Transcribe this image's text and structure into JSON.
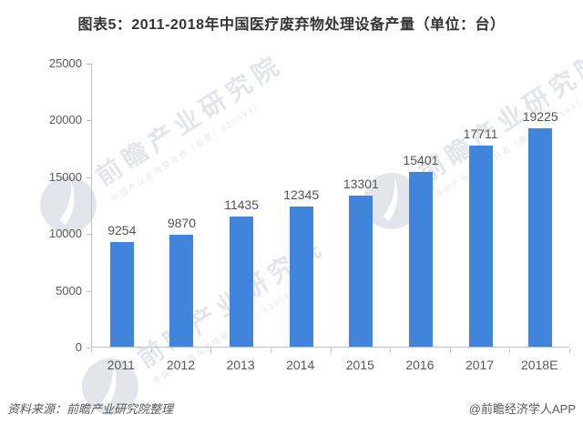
{
  "title": "图表5：2011-2018年中国医疗废弃物处理设备产量（单位：台）",
  "chart_data": {
    "type": "bar",
    "title": "图表5：2011-2018年中国医疗废弃物处理设备产量（单位：台）",
    "categories": [
      "2011",
      "2012",
      "2013",
      "2014",
      "2015",
      "2016",
      "2017",
      "2018E"
    ],
    "values": [
      9254,
      9870,
      11435,
      12345,
      13301,
      15401,
      17711,
      19225
    ],
    "xlabel": "",
    "ylabel": "",
    "ylim": [
      0,
      25000
    ],
    "yticks": [
      0,
      5000,
      10000,
      15000,
      20000,
      25000
    ],
    "grid": false,
    "legend": "none",
    "data_labels": true,
    "bar_color": "#4184DC",
    "axis_color": "#BFBFBF",
    "tick_label_color": "#595959",
    "value_label_color": "#555555"
  },
  "watermark": {
    "main": "前瞻产业研究院",
    "sub": "中国产业咨询领导者（股票：839599）"
  },
  "footer": {
    "source": "资料来源：前瞻产业研究院整理",
    "credit": "@前瞻经济学人APP"
  }
}
